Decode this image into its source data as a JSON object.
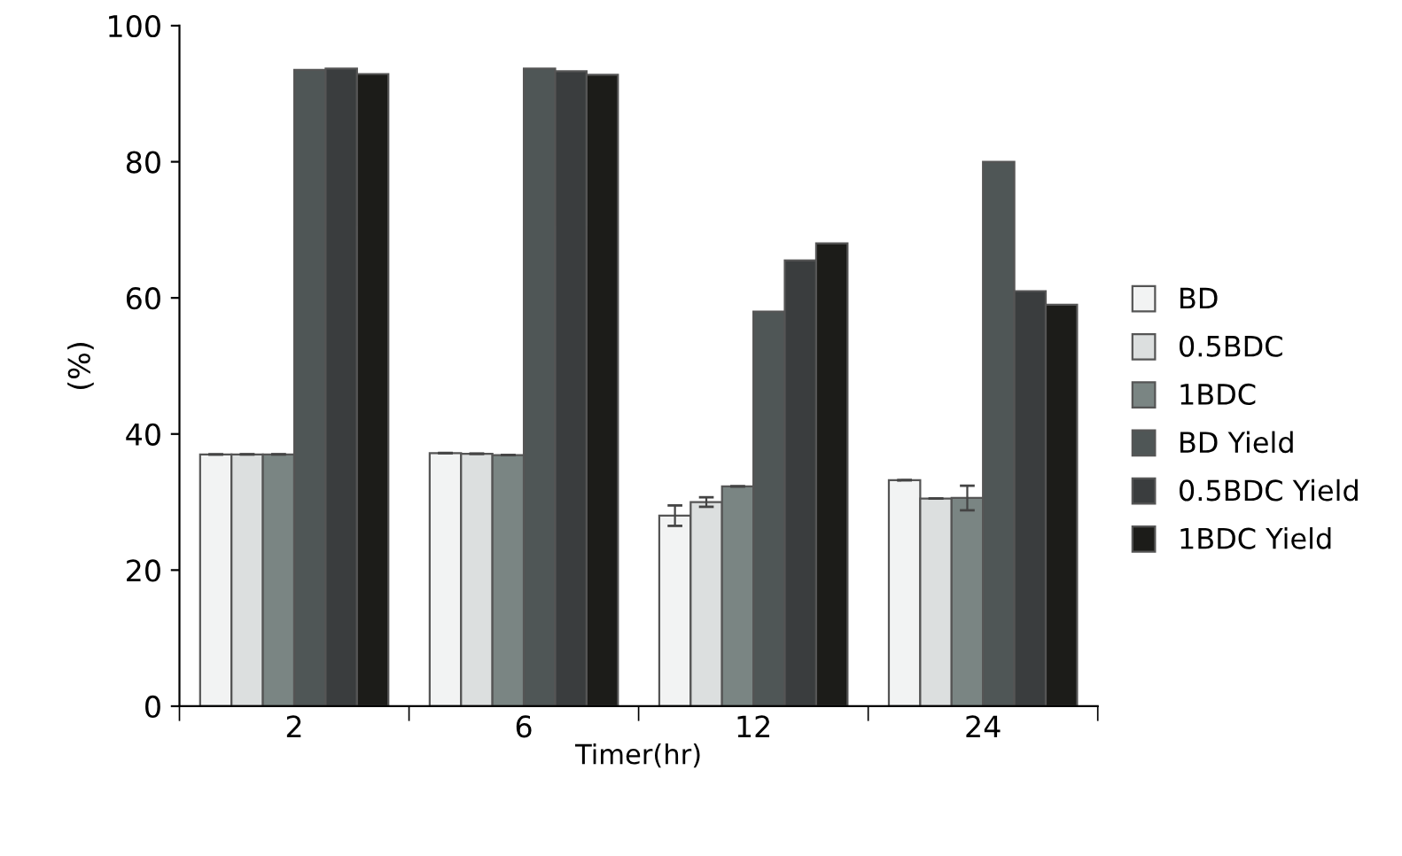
{
  "chart_data": {
    "type": "bar",
    "xlabel": "Timer(hr)",
    "ylabel": "(%)",
    "categories": [
      "2",
      "6",
      "12",
      "24"
    ],
    "series": [
      {
        "name": "BD",
        "color": "#f2f3f3",
        "values": [
          37,
          37.2,
          28,
          33.2
        ],
        "errors": [
          null,
          null,
          1.5,
          null
        ]
      },
      {
        "name": "0.5BDC",
        "color": "#dcdfdf",
        "values": [
          37,
          37.1,
          30,
          30.5
        ],
        "errors": [
          null,
          null,
          0.7,
          null
        ]
      },
      {
        "name": "1BDC",
        "color": "#7a8583",
        "values": [
          37,
          36.9,
          32.3,
          30.6
        ],
        "errors": [
          null,
          null,
          null,
          1.8
        ]
      },
      {
        "name": "BD Yield",
        "color": "#4f5656",
        "values": [
          93.5,
          93.7,
          58,
          80
        ]
      },
      {
        "name": "0.5BDC Yield",
        "color": "#3a3d3e",
        "values": [
          93.7,
          93.3,
          65.5,
          61
        ]
      },
      {
        "name": "1BDC Yield",
        "color": "#1c1c19",
        "values": [
          92.9,
          92.8,
          68,
          59
        ]
      }
    ],
    "ylim": [
      0,
      100
    ],
    "yticks": [
      0,
      20,
      40,
      60,
      80,
      100
    ],
    "grid": false,
    "legend": "right"
  }
}
